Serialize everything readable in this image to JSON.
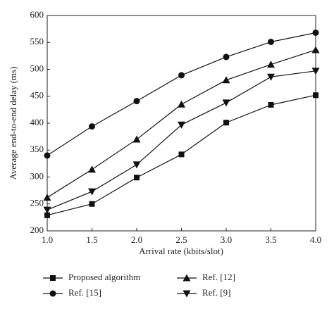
{
  "chart_data": {
    "type": "line",
    "x_label": "Arrival rate (kbits/slot)",
    "y_label": "Average end-to-end delay (ms)",
    "x": [
      1,
      1.5,
      2,
      2.5,
      3,
      3.5,
      4
    ],
    "xlim": [
      1,
      4
    ],
    "xticks": [
      {
        "value": 1,
        "label": "1.0"
      },
      {
        "value": 1.5,
        "label": "1.5"
      },
      {
        "value": 2,
        "label": "2.0"
      },
      {
        "value": 2.5,
        "label": "2.5"
      },
      {
        "value": 3,
        "label": "3.0"
      },
      {
        "value": 3.5,
        "label": "3.5"
      },
      {
        "value": 4,
        "label": "4.0"
      }
    ],
    "ylim": [
      200,
      600
    ],
    "yticks": [
      200,
      250,
      300,
      350,
      400,
      450,
      500,
      550,
      600
    ],
    "series": [
      {
        "name": "Proposed algorithm",
        "color": "#111111",
        "marker": "square",
        "values": [
          229,
          250,
          299,
          342,
          401,
          434,
          452
        ]
      },
      {
        "name": "Ref. [15]",
        "color": "#111111",
        "marker": "circle",
        "values": [
          340,
          394,
          441,
          489,
          523,
          551,
          568
        ]
      },
      {
        "name": "Ref. [12]",
        "color": "#111111",
        "marker": "triangle-up",
        "values": [
          262,
          314,
          370,
          435,
          480,
          509,
          536
        ]
      },
      {
        "name": "Ref. [9]",
        "color": "#111111",
        "marker": "triangle-down",
        "values": [
          239,
          273,
          323,
          397,
          438,
          486,
          497
        ]
      }
    ]
  }
}
